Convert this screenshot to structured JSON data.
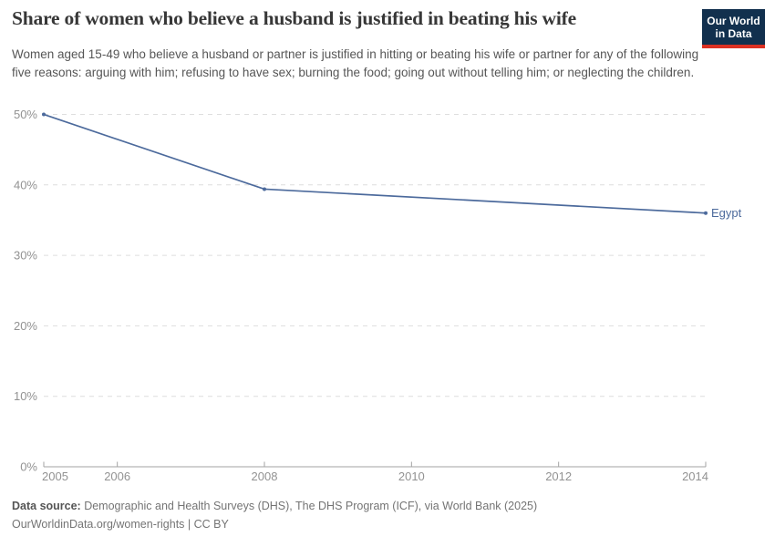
{
  "header": {
    "title": "Share of women who believe a husband is justified in beating his wife",
    "subtitle": "Women aged 15-49 who believe a husband or partner is justified in hitting or beating his wife or partner for any of the following five reasons: arguing with him; refusing to have sex; burning the food; going out without telling him; or neglecting the children."
  },
  "logo": {
    "line1": "Our World",
    "line2": "in Data",
    "bg_color": "#12304e",
    "accent_color": "#dc3022"
  },
  "chart_data": {
    "type": "line",
    "title": "Share of women who believe a husband is justified in beating his wife",
    "xlabel": "",
    "ylabel": "",
    "y_unit": "%",
    "xlim": [
      2005,
      2014
    ],
    "ylim": [
      0,
      50
    ],
    "x_ticks": [
      2005,
      2006,
      2008,
      2010,
      2012,
      2014
    ],
    "y_ticks": [
      0,
      10,
      20,
      30,
      40,
      50
    ],
    "grid": "horizontal-dashed",
    "legend_position": "end-of-line-label",
    "series": [
      {
        "name": "Egypt",
        "color": "#4c6a9c",
        "x": [
          2005,
          2008,
          2014
        ],
        "y": [
          50,
          39.4,
          36
        ]
      }
    ]
  },
  "footer": {
    "source_label": "Data source:",
    "source_text": " Demographic and Health Surveys (DHS), The DHS Program (ICF), via World Bank (2025)",
    "attribution": "OurWorldinData.org/women-rights | CC BY"
  }
}
